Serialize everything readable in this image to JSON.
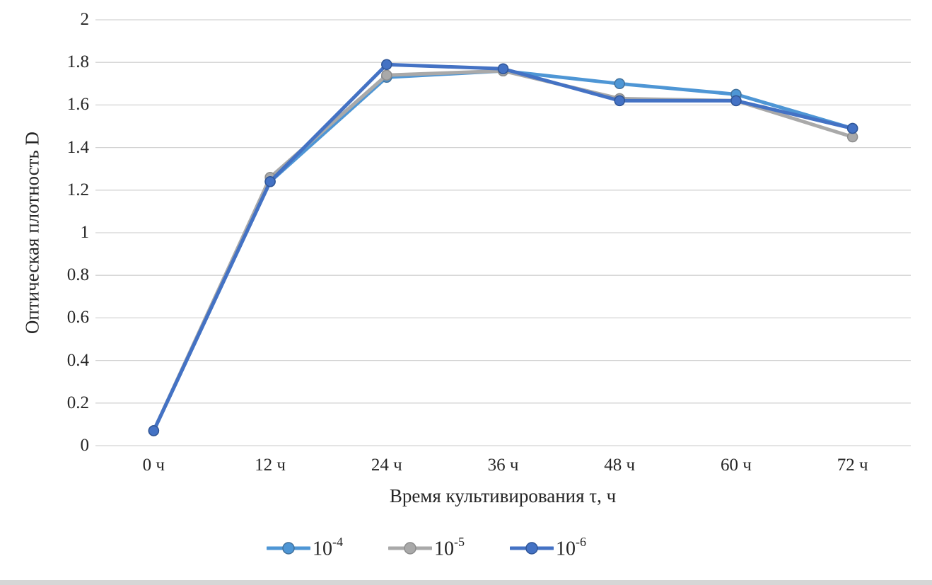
{
  "chart_data": {
    "type": "line",
    "title": "",
    "categories": [
      "0 ч",
      "12 ч",
      "24 ч",
      "36 ч",
      "48 ч",
      "60 ч",
      "72 ч"
    ],
    "series": [
      {
        "name": "10⁻⁴",
        "label_base": "10",
        "label_exp": "-4",
        "color": "#4E96D5",
        "marker_stroke": "#41719C",
        "values": [
          0.07,
          1.24,
          1.73,
          1.76,
          1.7,
          1.65,
          1.49
        ]
      },
      {
        "name": "10⁻⁵",
        "label_base": "10",
        "label_exp": "-5",
        "color": "#A9A9A9",
        "marker_stroke": "#8C8C8C",
        "values": [
          0.07,
          1.26,
          1.74,
          1.76,
          1.63,
          1.62,
          1.45
        ]
      },
      {
        "name": "10⁻⁶",
        "label_base": "10",
        "label_exp": "-6",
        "color": "#4472C4",
        "marker_stroke": "#2F5597",
        "values": [
          0.07,
          1.24,
          1.79,
          1.77,
          1.62,
          1.62,
          1.49
        ]
      }
    ],
    "xlabel": "Время культивирования τ, ч",
    "ylabel": "Оптическая плотность D",
    "ylim": [
      0,
      2
    ],
    "ytick_step": 0.2,
    "yticks": [
      "0",
      "0.2",
      "0.4",
      "0.6",
      "0.8",
      "1",
      "1.2",
      "1.4",
      "1.6",
      "1.8",
      "2"
    ],
    "grid": true,
    "legend_position": "bottom"
  },
  "colors": {
    "background": "#ffffff",
    "gridline": "#d3d3d3",
    "text": "#262626",
    "bottom_bar": "#d6d6d6"
  }
}
